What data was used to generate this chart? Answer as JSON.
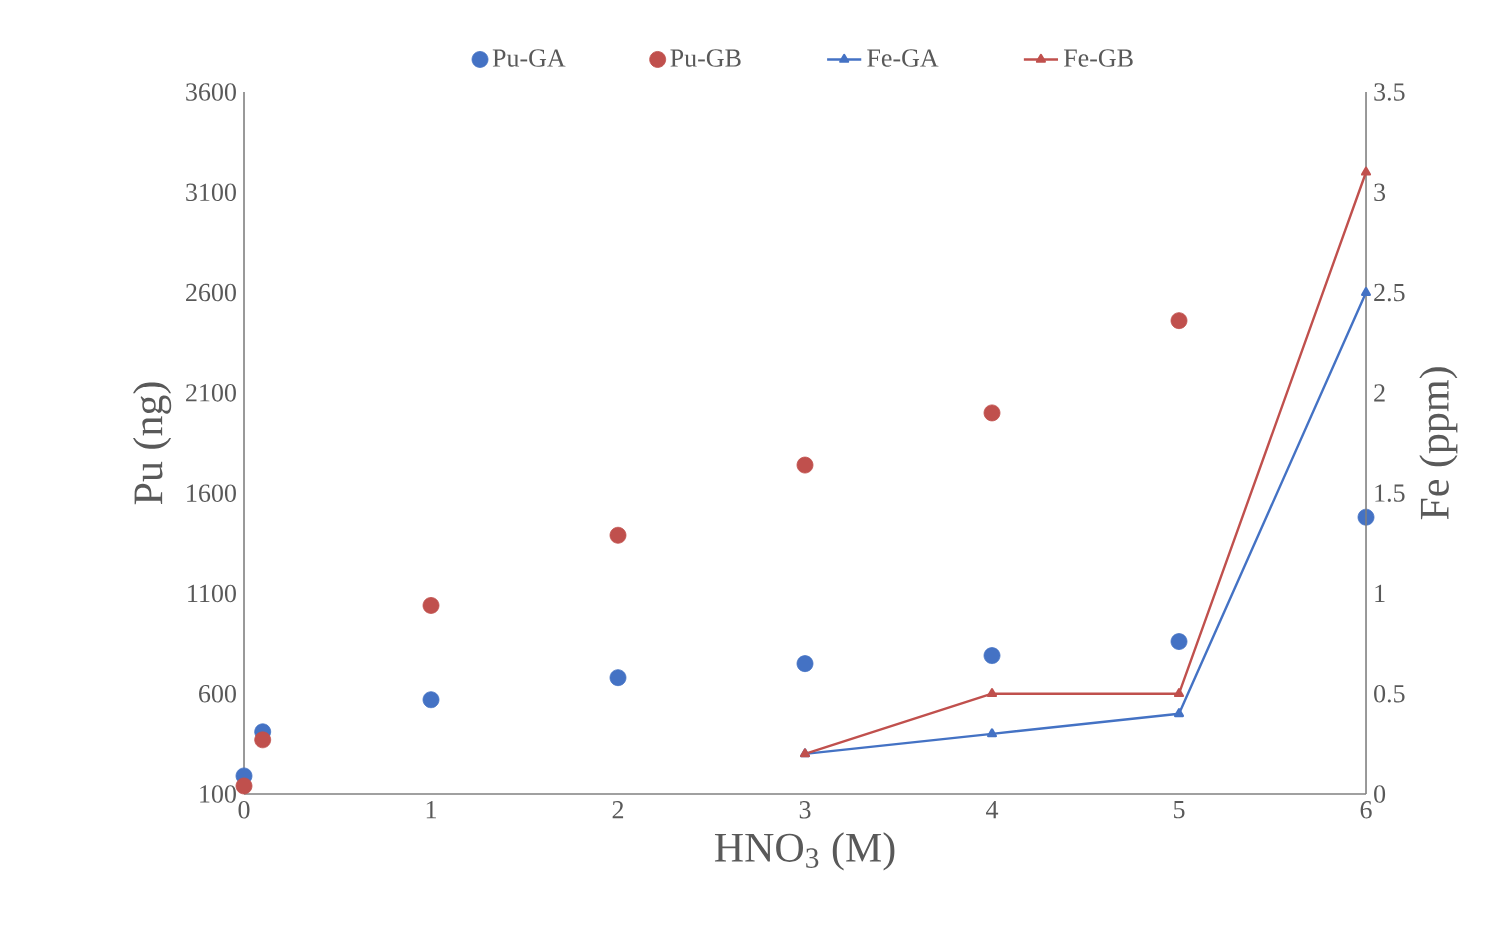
{
  "chart_data": {
    "type": "scatter",
    "xlabel": "HNO$_{3}$ (M)",
    "ylabel": "Pu (ng)",
    "y2label": "Fe (ppm)",
    "xlim": [
      0,
      6
    ],
    "xticks": [
      0,
      1,
      2,
      3,
      4,
      5,
      6
    ],
    "ylim": [
      100,
      3600
    ],
    "yticks": [
      100,
      600,
      1100,
      1600,
      2100,
      2600,
      3100,
      3600
    ],
    "y2lim": [
      0,
      3.5
    ],
    "y2ticks": [
      0,
      0.5,
      1,
      1.5,
      2,
      2.5,
      3,
      3.5
    ],
    "grid": false,
    "legend": "top",
    "series": [
      {
        "name": "Pu-GA",
        "marker": "circle",
        "color": "#4472c4",
        "x": [
          0,
          0.1,
          1,
          2,
          3,
          4,
          5,
          6
        ],
        "values": [
          190,
          410,
          570,
          680,
          750,
          790,
          860,
          1480
        ]
      },
      {
        "name": "Pu-GB",
        "marker": "circle",
        "color": "#c0504d",
        "x": [
          0,
          0.1,
          1,
          2,
          3,
          4,
          5
        ],
        "values": [
          140,
          370,
          1040,
          1390,
          1740,
          2000,
          2460
        ]
      },
      {
        "name": "Fe-GA",
        "type": "line",
        "marker": "triangle",
        "axis": "y2",
        "color": "#4472c4",
        "x": [
          3,
          4,
          5,
          6
        ],
        "values": [
          0.2,
          0.3,
          0.4,
          2.5
        ]
      },
      {
        "name": "Fe-GB",
        "type": "line",
        "marker": "triangle",
        "axis": "y2",
        "color": "#c0504d",
        "x": [
          3,
          4,
          5,
          6
        ],
        "values": [
          0.2,
          0.5,
          0.5,
          3.1
        ]
      }
    ]
  }
}
